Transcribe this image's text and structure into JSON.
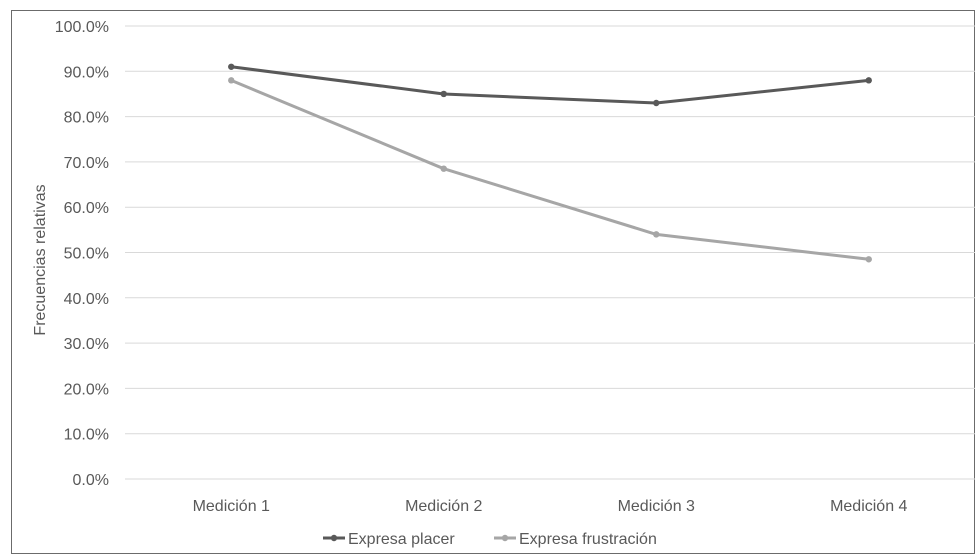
{
  "chart_data": {
    "type": "line",
    "title": "",
    "xlabel": "",
    "ylabel": "Frecuencias relativas",
    "categories": [
      "Medición 1",
      "Medición 2",
      "Medición 3",
      "Medición 4"
    ],
    "ylim": [
      0,
      100
    ],
    "yticks": [
      0,
      10,
      20,
      30,
      40,
      50,
      60,
      70,
      80,
      90,
      100
    ],
    "ytick_labels": [
      "0.0%",
      "10.0%",
      "20.0%",
      "30.0%",
      "40.0%",
      "50.0%",
      "60.0%",
      "70.0%",
      "80.0%",
      "90.0%",
      "100.0%"
    ],
    "grid": true,
    "legend_position": "bottom",
    "series": [
      {
        "name": "Expresa placer",
        "values": [
          91.0,
          85.0,
          83.0,
          88.0
        ],
        "color": "#595959"
      },
      {
        "name": "Expresa frustración",
        "values": [
          88.0,
          68.5,
          54.0,
          48.5
        ],
        "color": "#a6a6a6"
      }
    ]
  }
}
